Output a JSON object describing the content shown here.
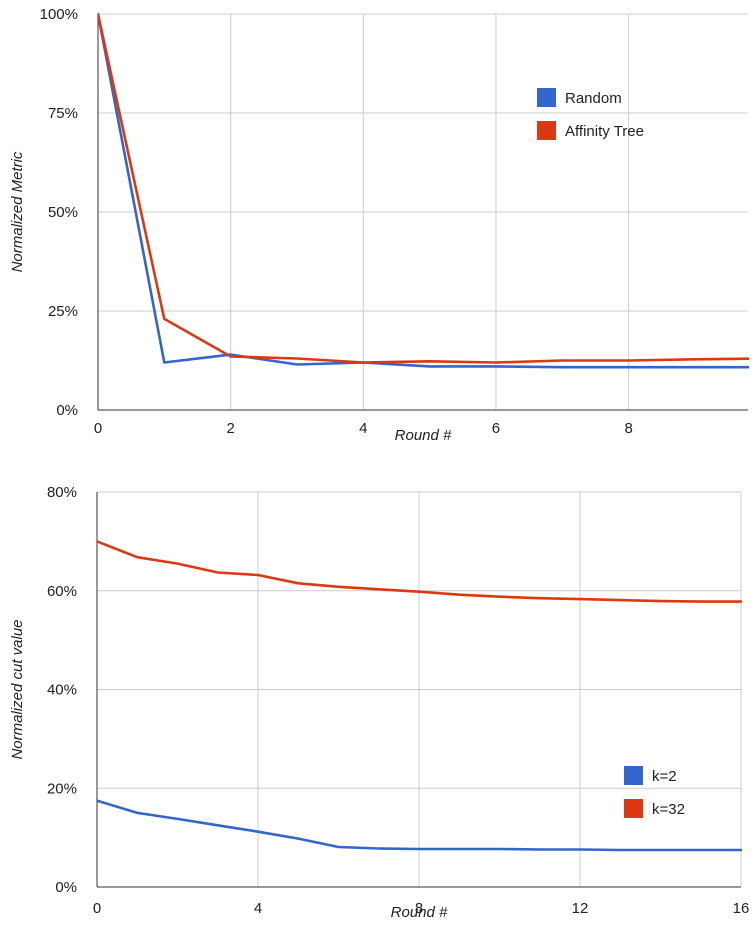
{
  "colors": {
    "blue": "#3366cc",
    "orange": "#dc3912",
    "grid": "#cccccc",
    "axis": "#333333"
  },
  "chart_data": [
    {
      "type": "line",
      "xlabel": "Round #",
      "ylabel": "Normalized Metric",
      "xlim": [
        0,
        9.8
      ],
      "ylim": [
        0,
        100
      ],
      "y_format": "percent",
      "x_ticks": [
        0,
        2,
        4,
        6,
        8
      ],
      "x_tick_labels": [
        "0",
        "2",
        "4",
        "6",
        "8"
      ],
      "y_ticks": [
        0,
        25,
        50,
        75,
        100
      ],
      "y_tick_labels": [
        "0%",
        "25%",
        "50%",
        "75%",
        "100%"
      ],
      "grid": true,
      "legend_position": "top-right",
      "x": [
        0,
        1,
        2,
        3,
        4,
        5,
        6,
        7,
        8,
        9,
        10
      ],
      "series": [
        {
          "name": "Random",
          "color": "#3366cc",
          "values": [
            100,
            12,
            14,
            11.5,
            12,
            11,
            11,
            10.8,
            10.8,
            10.8,
            10.8
          ]
        },
        {
          "name": "Affinity Tree",
          "color": "#dc3912",
          "values": [
            100,
            23,
            13.5,
            13,
            12,
            12.3,
            12,
            12.5,
            12.5,
            12.8,
            13
          ]
        }
      ]
    },
    {
      "type": "line",
      "xlabel": "Round #",
      "ylabel": "Normalized cut value",
      "xlim": [
        0,
        16
      ],
      "ylim": [
        0,
        80
      ],
      "y_format": "percent",
      "x_ticks": [
        0,
        4,
        8,
        12,
        16
      ],
      "x_tick_labels": [
        "0",
        "4",
        "8",
        "12",
        "16"
      ],
      "y_ticks": [
        0,
        20,
        40,
        60,
        80
      ],
      "y_tick_labels": [
        "0%",
        "20%",
        "40%",
        "60%",
        "80%"
      ],
      "grid": true,
      "legend_position": "right",
      "x": [
        0,
        1,
        2,
        3,
        4,
        5,
        6,
        7,
        8,
        9,
        10,
        11,
        12,
        13,
        14,
        15,
        16
      ],
      "series": [
        {
          "name": "k=2",
          "color": "#3366cc",
          "values": [
            17.5,
            15,
            13.8,
            12.5,
            11.2,
            9.8,
            8.1,
            7.8,
            7.7,
            7.7,
            7.7,
            7.6,
            7.6,
            7.5,
            7.5,
            7.5,
            7.5
          ]
        },
        {
          "name": "k=32",
          "color": "#dc3912",
          "values": [
            70,
            66.8,
            65.5,
            63.7,
            63.2,
            61.5,
            60.8,
            60.3,
            59.8,
            59.2,
            58.8,
            58.5,
            58.3,
            58.1,
            57.9,
            57.8,
            57.8
          ]
        }
      ]
    }
  ]
}
